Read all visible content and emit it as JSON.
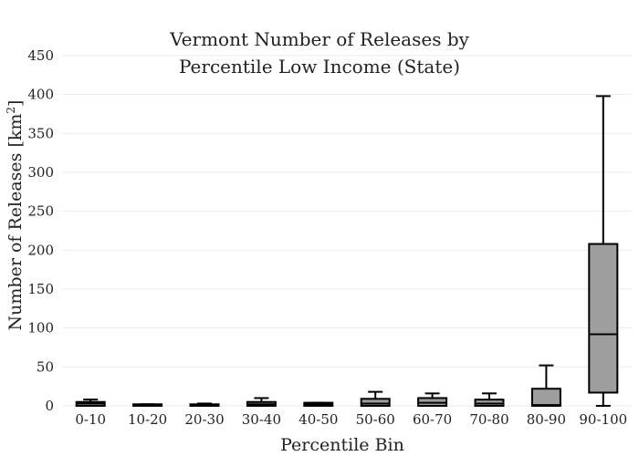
{
  "chart_data": {
    "type": "box",
    "title_lines": [
      "Vermont Number of Releases by",
      "Percentile Low Income (State)"
    ],
    "xlabel": "Percentile Bin",
    "ylabel": "Number of Releases  [km",
    "ylabel_sup": "2",
    "ylabel_end": "]",
    "ylim": [
      0,
      450
    ],
    "yticks": [
      0,
      50,
      100,
      150,
      200,
      250,
      300,
      350,
      400,
      450
    ],
    "grid": true,
    "box_color": "#9e9e9e",
    "categories": [
      "0-10",
      "10-20",
      "20-30",
      "30-40",
      "40-50",
      "50-60",
      "60-70",
      "70-80",
      "80-90",
      "90-100"
    ],
    "boxes": [
      {
        "min": 0,
        "q1": 0,
        "median": 3,
        "q3": 5,
        "max": 8
      },
      {
        "min": 0,
        "q1": 0,
        "median": 1,
        "q3": 2,
        "max": 2
      },
      {
        "min": 0,
        "q1": 0,
        "median": 1,
        "q3": 2,
        "max": 3
      },
      {
        "min": 0,
        "q1": 0,
        "median": 2,
        "q3": 5,
        "max": 10
      },
      {
        "min": 0,
        "q1": 0,
        "median": 2,
        "q3": 4,
        "max": 4
      },
      {
        "min": 0,
        "q1": 0,
        "median": 3,
        "q3": 9,
        "max": 18
      },
      {
        "min": 0,
        "q1": 0,
        "median": 4,
        "q3": 10,
        "max": 16
      },
      {
        "min": 0,
        "q1": 0,
        "median": 3,
        "q3": 8,
        "max": 16
      },
      {
        "min": 0,
        "q1": 0,
        "median": 1,
        "q3": 22,
        "max": 52
      },
      {
        "min": 0,
        "q1": 17,
        "median": 92,
        "q3": 208,
        "max": 398
      }
    ]
  }
}
